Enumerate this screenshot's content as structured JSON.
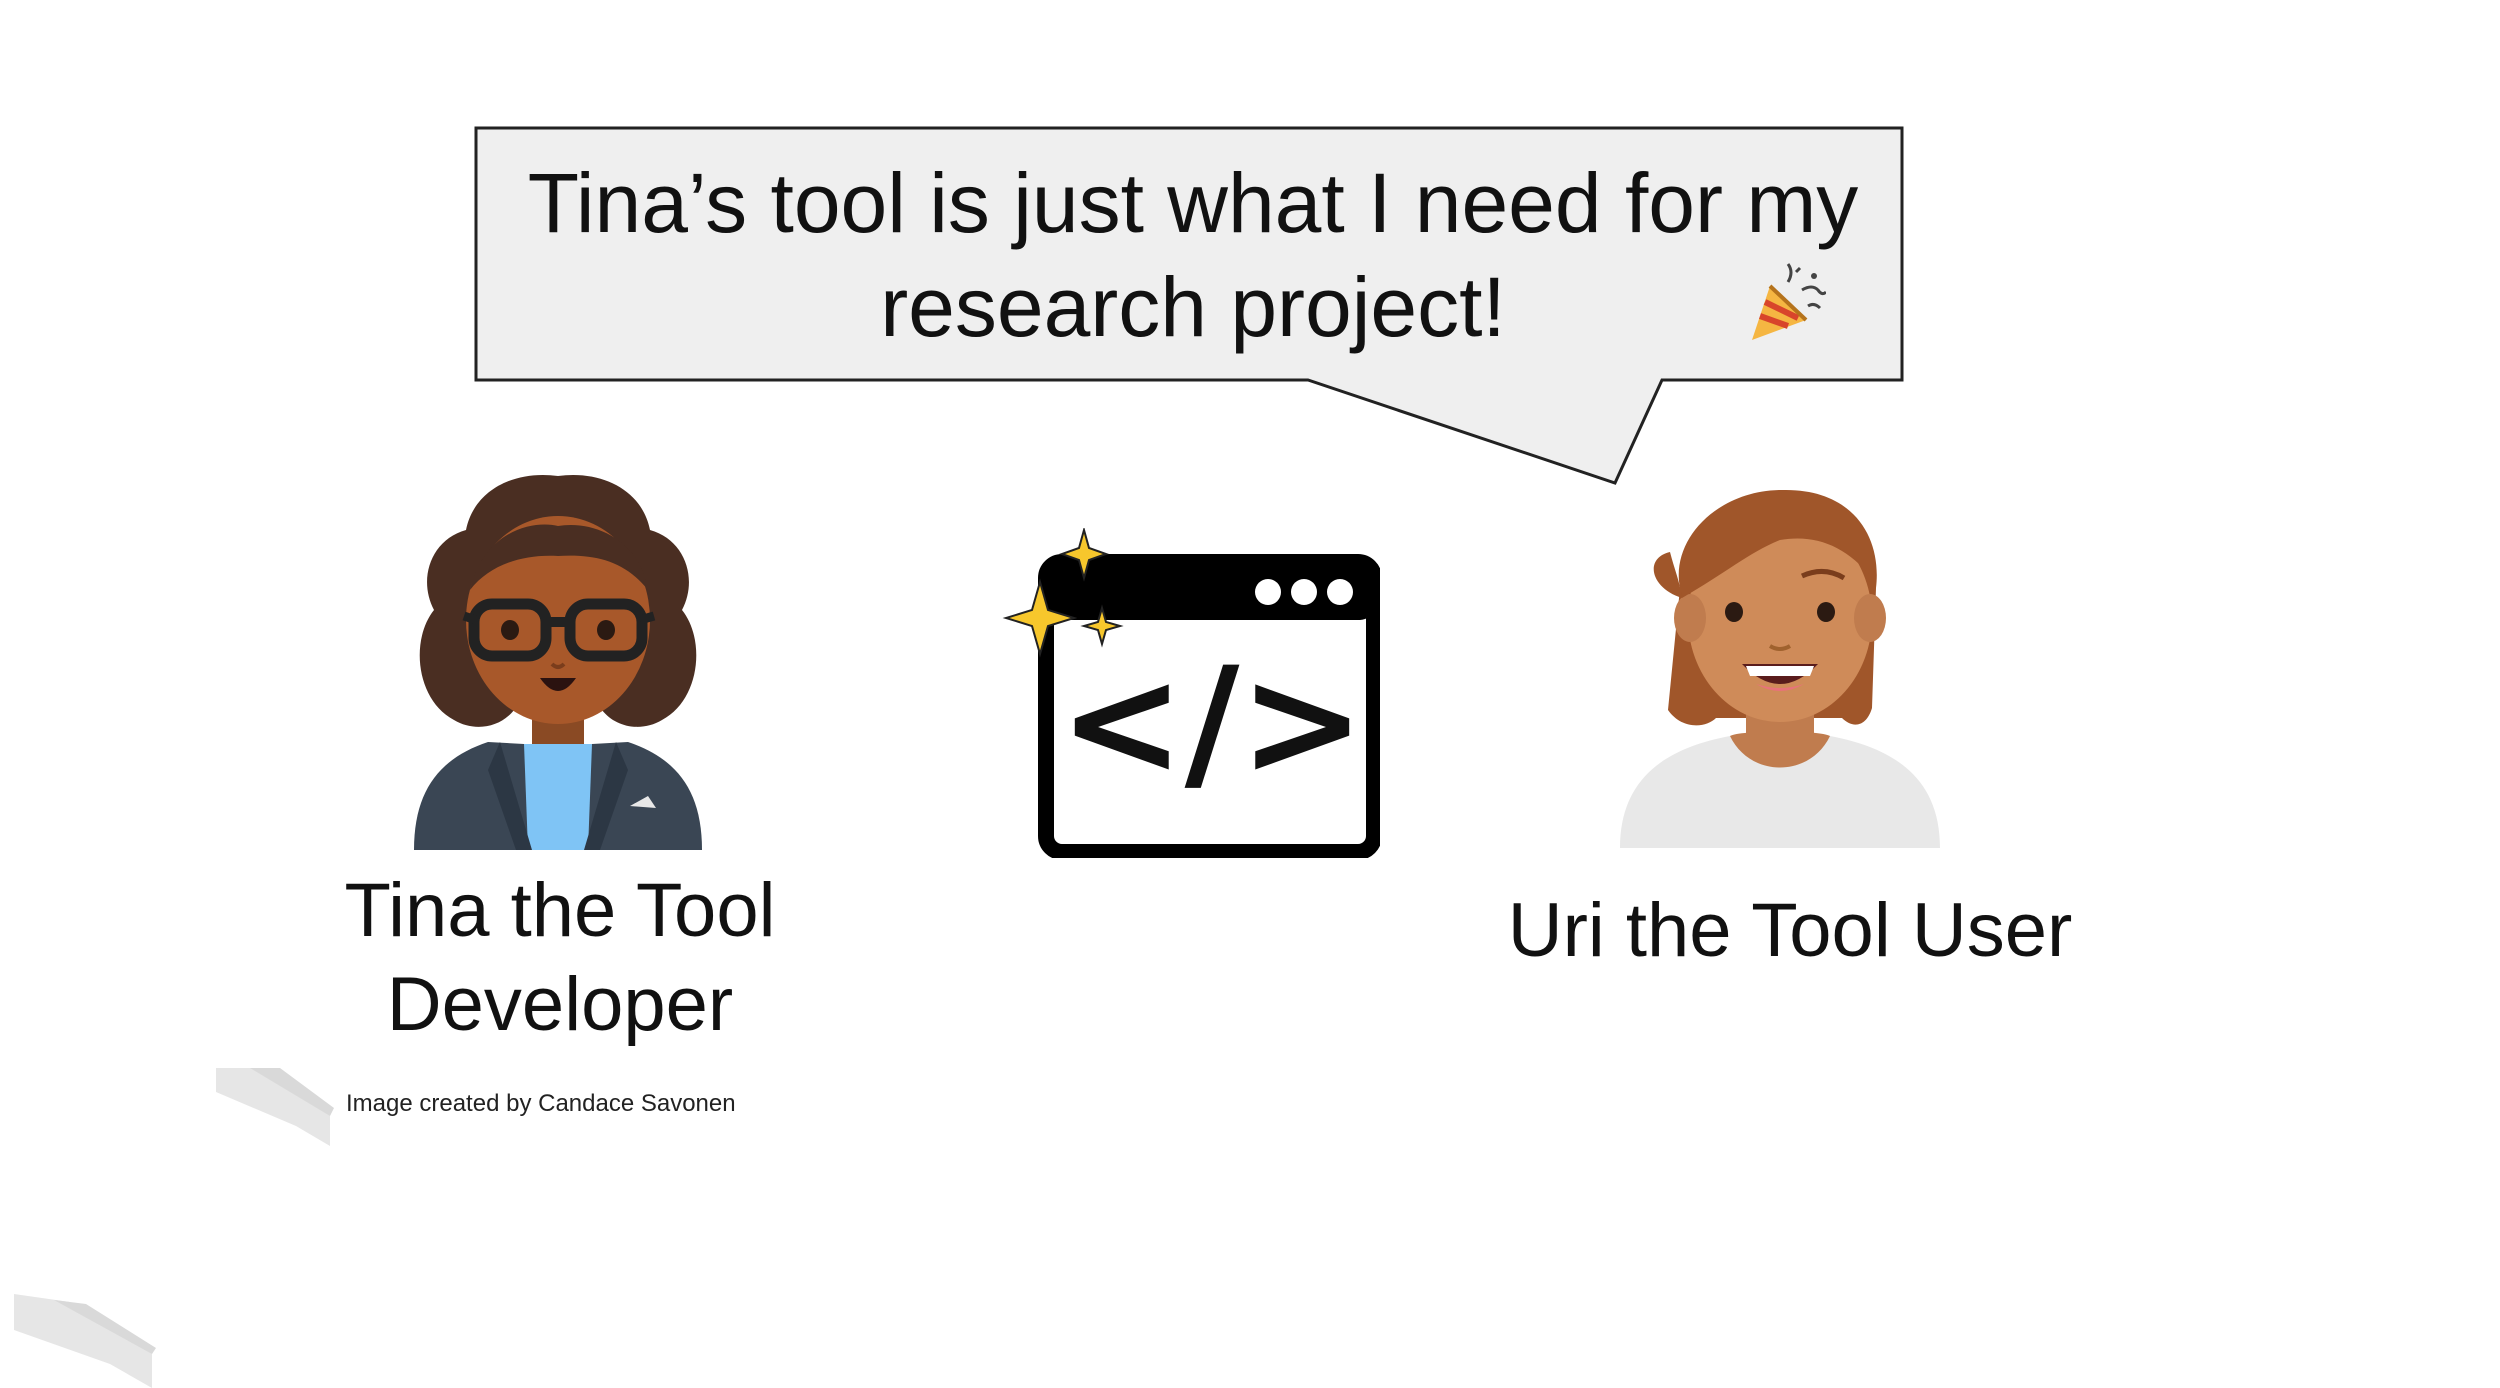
{
  "bubble": {
    "line1": "Tina’s tool is just what I need for my",
    "line2": "research project!",
    "icon": "party-popper-icon"
  },
  "characters": {
    "developer": {
      "name_line1": "Tina the Tool",
      "name_line2": "Developer",
      "icon": "woman-with-glasses-avatar"
    },
    "user": {
      "name": "Uri the Tool User",
      "icon": "smiling-person-avatar"
    }
  },
  "center_icon": {
    "icon": "code-window-icon",
    "glyph": "</>",
    "sparkle_icon": "sparkles-icon"
  },
  "credit": "Image created by Candace Savonen",
  "colors": {
    "bubble_fill": "#efefef",
    "bubble_stroke": "#222222",
    "text": "#111111",
    "sparkle": "#f7c72c",
    "deco": "#e8e8e8"
  }
}
